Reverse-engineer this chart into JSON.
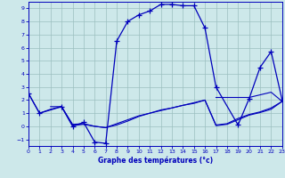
{
  "xlabel": "Graphe des températures (°c)",
  "xlim": [
    0,
    23
  ],
  "ylim": [
    -1.5,
    9.5
  ],
  "yticks": [
    -1,
    0,
    1,
    2,
    3,
    4,
    5,
    6,
    7,
    8,
    9
  ],
  "xticks": [
    0,
    1,
    2,
    3,
    4,
    5,
    6,
    7,
    8,
    9,
    10,
    11,
    12,
    13,
    14,
    15,
    16,
    17,
    18,
    19,
    20,
    21,
    22,
    23
  ],
  "bg_color": "#cde8ea",
  "grid_color": "#9bbfbf",
  "line_color": "#0000bb",
  "main_x": [
    0,
    1,
    3,
    4,
    5,
    6,
    7,
    8,
    9,
    10,
    11,
    12,
    13,
    14,
    15,
    16,
    17,
    19,
    20,
    21,
    22,
    23
  ],
  "main_y": [
    2.5,
    1.0,
    1.5,
    0.0,
    0.3,
    -1.2,
    -1.3,
    6.5,
    8.0,
    8.5,
    8.8,
    9.3,
    9.3,
    9.2,
    9.2,
    7.5,
    3.0,
    0.1,
    2.1,
    4.5,
    5.7,
    2.0
  ],
  "line2_x": [
    0,
    1,
    2,
    3,
    4,
    5,
    6,
    7,
    8,
    9,
    10,
    11,
    12,
    13,
    14,
    15,
    16,
    17,
    18,
    19,
    20,
    21,
    22,
    23
  ],
  "line2_y": [
    2.5,
    1.0,
    1.3,
    1.5,
    0.05,
    0.15,
    0.0,
    -0.1,
    0.2,
    0.5,
    0.8,
    1.0,
    1.2,
    1.4,
    1.6,
    1.8,
    2.0,
    0.1,
    0.2,
    0.6,
    0.9,
    1.1,
    1.4,
    1.9
  ],
  "line3_x": [
    2,
    3,
    4,
    5,
    6,
    7,
    8,
    9,
    10,
    11,
    12,
    13,
    14,
    15,
    16,
    17,
    18,
    19,
    20,
    21,
    22,
    23
  ],
  "line3_y": [
    1.5,
    1.5,
    0.15,
    0.2,
    0.0,
    -0.1,
    0.1,
    0.4,
    0.75,
    1.0,
    1.25,
    1.4,
    1.6,
    1.75,
    2.0,
    0.05,
    0.15,
    0.5,
    0.85,
    1.05,
    1.3,
    1.9
  ],
  "line4_x": [
    17,
    18,
    19,
    20,
    21,
    22,
    23
  ],
  "line4_y": [
    2.2,
    2.2,
    2.2,
    2.2,
    2.4,
    2.6,
    1.9
  ]
}
